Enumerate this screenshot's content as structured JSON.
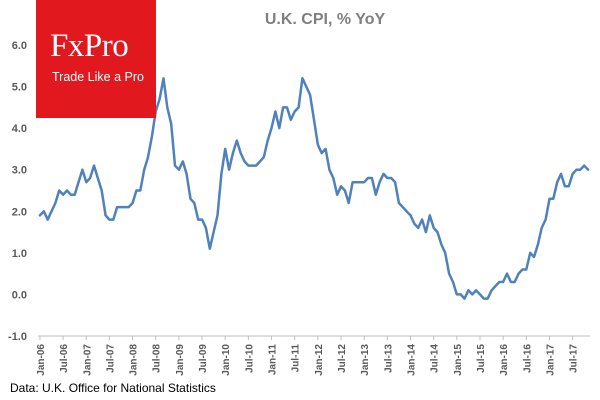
{
  "logo": {
    "brand": "FxPro",
    "tagline": "Trade Like a Pro",
    "color": "#e2181f"
  },
  "source_note": "Data: U.K. Office for National Statistics",
  "chart_data": {
    "type": "line",
    "title": "U.K. CPI, % YoY",
    "xlabel": "",
    "ylabel": "",
    "ylim": [
      -1.0,
      6.0
    ],
    "yticks": [
      "-1.0",
      "0.0",
      "1.0",
      "2.0",
      "3.0",
      "4.0",
      "5.0",
      "6.0"
    ],
    "xticks": [
      "Jan-06",
      "Jul-06",
      "Jan-07",
      "Jul-07",
      "Jan-08",
      "Jul-08",
      "Jan-09",
      "Jul-09",
      "Jan-10",
      "Jul-10",
      "Jan-11",
      "Jul-11",
      "Jan-12",
      "Jul-12",
      "Jan-13",
      "Jul-13",
      "Jan-14",
      "Jul-14",
      "Jan-15",
      "Jul-15",
      "Jan-16",
      "Jul-16",
      "Jan-17",
      "Jul-17"
    ],
    "grid": false,
    "line_color": "#4f81bd",
    "series": [
      {
        "start": "Jan-06",
        "frequency": "monthly",
        "values": [
          1.9,
          2.0,
          1.8,
          2.0,
          2.2,
          2.5,
          2.4,
          2.5,
          2.4,
          2.4,
          2.7,
          3.0,
          2.7,
          2.8,
          3.1,
          2.8,
          2.5,
          1.9,
          1.8,
          1.8,
          2.1,
          2.1,
          2.1,
          2.1,
          2.2,
          2.5,
          2.5,
          3.0,
          3.3,
          3.8,
          4.4,
          4.7,
          5.2,
          4.5,
          4.1,
          3.1,
          3.0,
          3.2,
          2.9,
          2.3,
          2.2,
          1.8,
          1.8,
          1.6,
          1.1,
          1.5,
          1.9,
          2.9,
          3.5,
          3.0,
          3.4,
          3.7,
          3.4,
          3.2,
          3.1,
          3.1,
          3.1,
          3.2,
          3.3,
          3.7,
          4.0,
          4.4,
          4.0,
          4.5,
          4.5,
          4.2,
          4.4,
          4.5,
          5.2,
          5.0,
          4.8,
          4.2,
          3.6,
          3.4,
          3.5,
          3.0,
          2.8,
          2.4,
          2.6,
          2.5,
          2.2,
          2.7,
          2.7,
          2.7,
          2.7,
          2.8,
          2.8,
          2.4,
          2.7,
          2.9,
          2.8,
          2.8,
          2.7,
          2.2,
          2.1,
          2.0,
          1.9,
          1.7,
          1.6,
          1.8,
          1.5,
          1.9,
          1.6,
          1.5,
          1.2,
          1.0,
          0.5,
          0.3,
          0.0,
          0.0,
          -0.1,
          0.1,
          0.0,
          0.1,
          0.0,
          -0.1,
          -0.1,
          0.1,
          0.2,
          0.3,
          0.3,
          0.5,
          0.3,
          0.3,
          0.5,
          0.6,
          0.6,
          1.0,
          0.9,
          1.2,
          1.6,
          1.8,
          2.3,
          2.3,
          2.7,
          2.9,
          2.6,
          2.6,
          2.9,
          3.0,
          3.0,
          3.1,
          3.0
        ]
      }
    ]
  }
}
